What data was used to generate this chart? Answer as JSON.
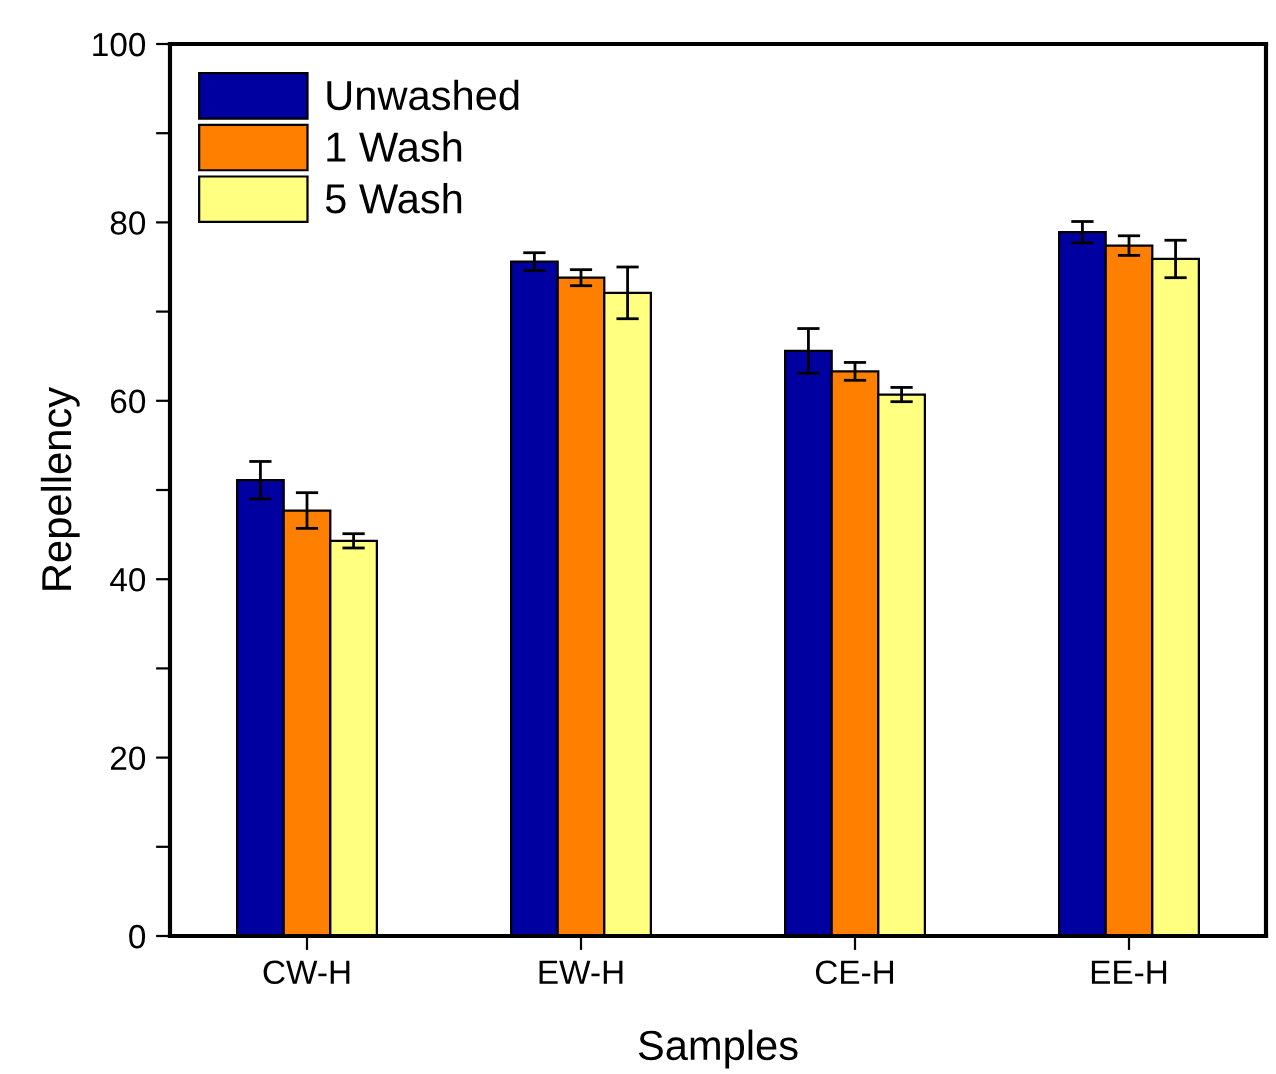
{
  "chart_data": {
    "type": "bar",
    "xlabel": "Samples",
    "ylabel": "Repellency",
    "categories": [
      "CW-H",
      "EW-H",
      "CE-H",
      "EE-H"
    ],
    "series": [
      {
        "name": "Unwashed",
        "color": "#0000a0",
        "values": [
          51.1,
          75.6,
          65.6,
          78.9
        ],
        "errors": [
          2.1,
          1.0,
          2.5,
          1.2
        ]
      },
      {
        "name": "1 Wash",
        "color": "#ff8000",
        "values": [
          47.7,
          73.8,
          63.3,
          77.4
        ],
        "errors": [
          2.0,
          0.9,
          1.0,
          1.1
        ]
      },
      {
        "name": "5 Wash",
        "color": "#ffff80",
        "values": [
          44.3,
          72.1,
          60.7,
          75.9
        ],
        "errors": [
          0.8,
          2.9,
          0.8,
          2.1
        ]
      }
    ],
    "ylim": [
      0,
      100
    ],
    "yticks": [
      0,
      {
        "value": 10,
        "label": null
      },
      20,
      {
        "value": 30,
        "label": null
      },
      40,
      {
        "value": 50,
        "label": null
      },
      60,
      {
        "value": 70,
        "label": null
      },
      80,
      {
        "value": 90,
        "label": null
      },
      100
    ],
    "legend": "top left",
    "grid": false
  }
}
